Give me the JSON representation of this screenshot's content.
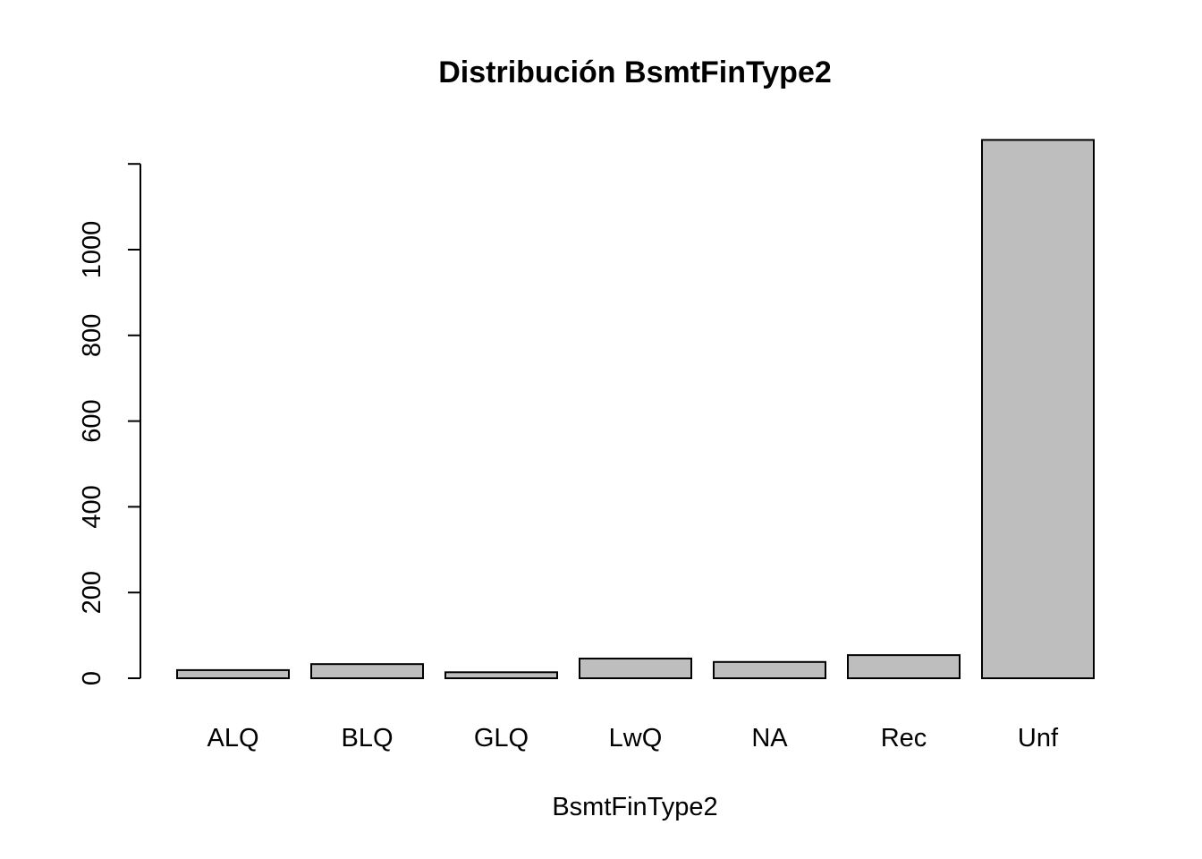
{
  "chart_data": {
    "type": "bar",
    "title": "Distribución BsmtFinType2",
    "xlabel": "BsmtFinType2",
    "ylabel": "",
    "categories": [
      "ALQ",
      "BLQ",
      "GLQ",
      "LwQ",
      "NA",
      "Rec",
      "Unf"
    ],
    "values": [
      19,
      33,
      14,
      46,
      38,
      54,
      1256
    ],
    "ylim": [
      0,
      1200
    ],
    "yticks": [
      0,
      200,
      400,
      600,
      800,
      1000
    ],
    "bar_color": "#bebebe",
    "grid": false
  }
}
